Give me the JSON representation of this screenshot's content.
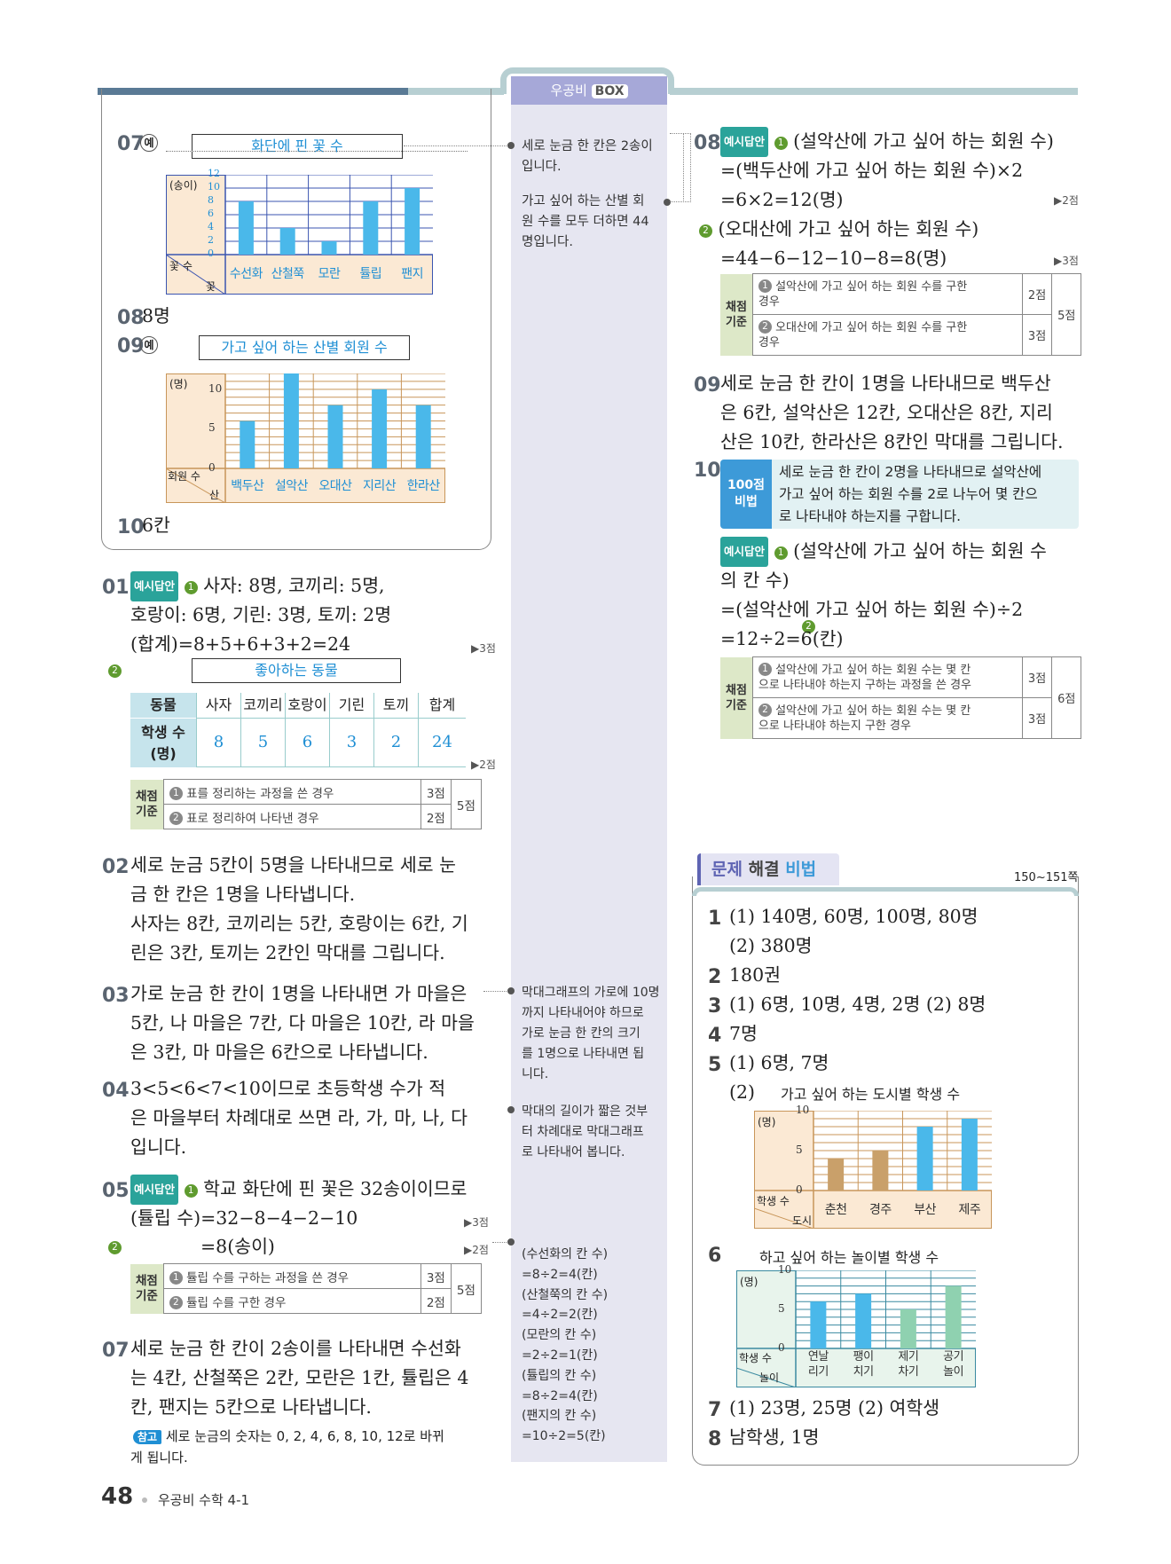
{
  "header": {
    "box_label_1": "우공비",
    "box_label_2": "BOX"
  },
  "left_box": {
    "q07": {
      "num": "07",
      "ex": "예",
      "title": "화단에 핀 꽃 수",
      "unit": "(송이)",
      "ylab": "꽃 수",
      "xlab": "꽃",
      "ticks": [
        "12",
        "10",
        "8",
        "6",
        "4",
        "2",
        "0"
      ],
      "categories": [
        "수선화",
        "산철쭉",
        "모란",
        "튤립",
        "팬지"
      ],
      "values": [
        8,
        4,
        2,
        8,
        10
      ]
    },
    "q08": {
      "num": "08",
      "text": "8명"
    },
    "q09": {
      "num": "09",
      "ex": "예",
      "title": "가고 싶어 하는 산별 회원 수",
      "unit": "(명)",
      "ylab": "회원 수",
      "xlab": "산",
      "ticks": [
        "10",
        "5",
        "0"
      ],
      "categories": [
        "백두산",
        "설악산",
        "오대산",
        "지리산",
        "한라산"
      ],
      "values": [
        6,
        12,
        8,
        10,
        8
      ]
    },
    "q10": {
      "num": "10",
      "text": "6칸"
    }
  },
  "col1": {
    "q01": {
      "num": "01",
      "badge": "예시답안",
      "l1": "사자: 8명, 코끼리: 5명,",
      "l2": "호랑이: 6명, 기린: 3명, 토끼: 2명",
      "l3": "(합계)=8+5+6+3+2=24",
      "pt1": "▶3점",
      "title": "좋아하는 동물",
      "h1": "동물",
      "h2": "학생 수",
      "h3": "(명)",
      "cols": [
        "사자",
        "코끼리",
        "호랑이",
        "기린",
        "토끼",
        "합계"
      ],
      "vals": [
        "8",
        "5",
        "6",
        "3",
        "2",
        "24"
      ],
      "pt2": "▶2점",
      "sc_label1": "채점",
      "sc_label2": "기준",
      "sc1": "표를 정리하는 과정을 쓴 경우",
      "sc1p": "3점",
      "sc2": "표로 정리하여 나타낸 경우",
      "sc2p": "2점",
      "sct": "5점"
    },
    "q02": {
      "num": "02",
      "l1": "세로 눈금 5칸이 5명을 나타내므로 세로 눈",
      "l2": "금 한 칸은 1명을 나타냅니다.",
      "l3": "사자는 8칸, 코끼리는 5칸, 호랑이는 6칸, 기",
      "l4": "린은 3칸, 토끼는 2칸인 막대를 그립니다."
    },
    "q03": {
      "num": "03",
      "l1": "가로 눈금 한 칸이 1명을 나타내면 가 마을은",
      "l2": "5칸, 나 마을은 7칸, 다 마을은 10칸, 라 마을",
      "l3": "은 3칸, 마 마을은 6칸으로 나타냅니다."
    },
    "q04": {
      "num": "04",
      "l1": "3<5<6<7<10이므로 초등학생 수가 적",
      "l2": "은 마을부터 차례대로 쓰면 라, 가, 마, 나, 다",
      "l3": "입니다."
    },
    "q05": {
      "num": "05",
      "badge": "예시답안",
      "l1": "학교 화단에 핀 꽃은 32송이이므로",
      "l2": "(튤립 수)=32−8−4−2−10",
      "l3": "=8(송이)",
      "pt1": "▶3점",
      "pt2": "▶2점",
      "sc1": "튤립 수를 구하는 과정을 쓴 경우",
      "sc1p": "3점",
      "sc2": "튤립 수를 구한 경우",
      "sc2p": "2점",
      "sct": "5점"
    },
    "q07b": {
      "num": "07",
      "l1": "세로 눈금 한 칸이 2송이를 나타내면 수선화",
      "l2": "는 4칸, 산철쭉은 2칸, 모란은 1칸, 튤립은 4",
      "l3": "칸, 팬지는 5칸으로 나타냅니다.",
      "note_label": "참고",
      "n1": "세로 눈금의 숫자는 0, 2, 4, 6, 8, 10, 12로 바뀌",
      "n2": "게 됩니다."
    }
  },
  "side": {
    "s1": [
      "세로 눈금 한 칸은 2송이",
      "입니다."
    ],
    "s2": [
      "가고 싶어 하는 산별 회",
      "원 수를 모두 더하면 44",
      "명입니다."
    ],
    "s3": [
      "막대그래프의 가로에 10명",
      "까지 나타내어야 하므로",
      "가로 눈금 한 칸의 크기",
      "를 1명으로 나타내면 됩",
      "니다."
    ],
    "s4": [
      "막대의 길이가 짧은 것부",
      "터 차례대로 막대그래프",
      "로 나타내어 봅니다."
    ],
    "s5": [
      "(수선화의 칸 수)",
      "=8÷2=4(칸)",
      "(산철쭉의 칸 수)",
      "=4÷2=2(칸)",
      "(모란의 칸 수)",
      "=2÷2=1(칸)",
      "(튤립의 칸 수)",
      "=8÷2=4(칸)",
      "(팬지의 칸 수)",
      "=10÷2=5(칸)"
    ]
  },
  "col3": {
    "q08": {
      "num": "08",
      "badge": "예시답안",
      "l1": "(설악산에 가고 싶어 하는 회원 수)",
      "l2": "=(백두산에 가고 싶어 하는 회원 수)×2",
      "l3": "=6×2=12(명)",
      "pt1": "▶2점",
      "l4": "(오대산에 가고 싶어 하는 회원 수)",
      "l5": "=44−6−12−10−8=8(명)",
      "pt2": "▶3점",
      "sc1a": "설악산에 가고 싶어 하는 회원 수를 구한",
      "sc1b": "경우",
      "sc1p": "2점",
      "sc2a": "오대산에 가고 싶어 하는 회원 수를 구한",
      "sc2b": "경우",
      "sc2p": "3점",
      "sct": "5점"
    },
    "q09": {
      "num": "09",
      "l1": "세로 눈금 한 칸이 1명을 나타내므로 백두산",
      "l2": "은 6칸, 설악산은 12칸, 오대산은 8칸, 지리",
      "l3": "산은 10칸, 한라산은 8칸인 막대를 그립니다."
    },
    "q10": {
      "num": "10",
      "tip1": "100점",
      "tip2": "비법",
      "t1": "세로 눈금 한 칸이 2명을 나타내므로 설악산에",
      "t2": "가고 싶어 하는 회원 수를 2로 나누어 몇 칸으",
      "t3": "로 나타내야 하는지를 구합니다.",
      "badge": "예시답안",
      "l1": "(설악산에 가고 싶어 하는 회원 수",
      "l2": "의 칸 수)",
      "l3": "=(설악산에 가고 싶어 하는 회원 수)÷2",
      "l4": "=12÷2=6(칸)",
      "sc1a": "설악산에 가고 싶어 하는 회원 수는 몇 칸",
      "sc1b": "으로 나타내야 하는지 구하는 과정을 쓴 경우",
      "sc1p": "3점",
      "sc2a": "설악산에 가고 싶어 하는 회원 수는 몇 칸",
      "sc2b": "으로 나타내야 하는지 구한 경우",
      "sc2p": "3점",
      "sct": "6점"
    }
  },
  "solve": {
    "title_a": "문제",
    "title_b": "해결",
    "title_c": "비법",
    "pages": "150~151쪽",
    "a1a": "(1) 140명, 60명, 100명, 80명",
    "a1b": "(2) 380명",
    "a2": "180권",
    "a3": "(1) 6명, 10명, 4명, 2명   (2) 8명",
    "a4": "7명",
    "a5a": "(1) 6명, 7명",
    "a5b": "(2)",
    "c5": {
      "title": "가고 싶어 하는 도시별 학생 수",
      "unit": "(명)",
      "ylab": "학생 수",
      "xlab": "도시",
      "ticks": [
        "10",
        "5",
        "0"
      ],
      "categories": [
        "춘천",
        "경주",
        "부산",
        "제주"
      ],
      "values": [
        4,
        5,
        8,
        9
      ]
    },
    "c6": {
      "title": "하고 싶어 하는 놀이별 학생 수",
      "unit": "(명)",
      "ylab": "학생 수",
      "xlab": "놀이",
      "ticks": [
        "10",
        "5",
        "0"
      ],
      "categories": [
        [
          "연날",
          "리기"
        ],
        [
          "팽이",
          "치기"
        ],
        [
          "제기",
          "차기"
        ],
        [
          "공기",
          "놀이"
        ]
      ],
      "values": [
        6,
        7,
        5,
        8
      ]
    },
    "a7": "(1) 23명, 25명   (2) 여학생",
    "a8": "남학생, 1명"
  },
  "footer": {
    "page": "48",
    "book": "우공비 수학 4-1"
  }
}
